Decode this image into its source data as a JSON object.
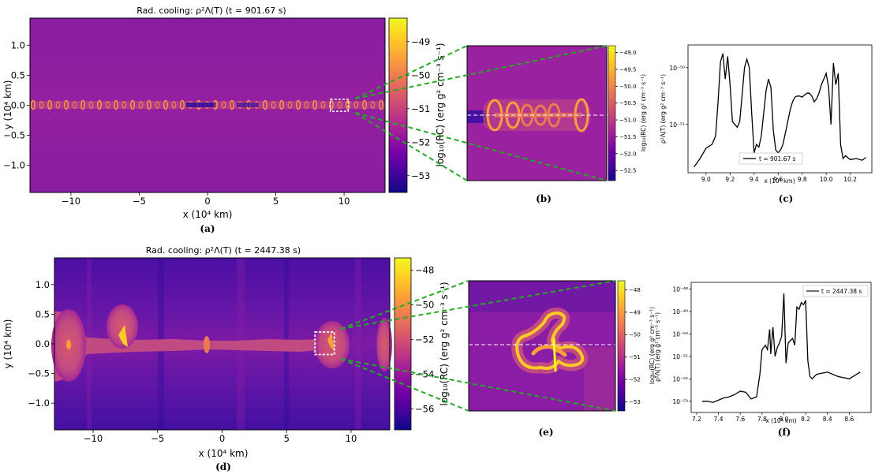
{
  "panel_labels": {
    "a": "(a)",
    "b": "(b)",
    "c": "(c)",
    "d": "(d)",
    "e": "(e)",
    "f": "(f)"
  },
  "colors": {
    "cmap": [
      "#0d0887",
      "#46039f",
      "#7201a8",
      "#9c179e",
      "#bd3786",
      "#d8576b",
      "#ed7953",
      "#fb9f3a",
      "#fdca26",
      "#f0f921"
    ],
    "bg_top": "#8f1aa0",
    "bg_bottom": "#5a13a6",
    "connector": "#22aa22",
    "cut_line": "#ffffff",
    "frame": "#000000"
  },
  "chart_data": [
    {
      "id": "a",
      "type": "heatmap",
      "title": "Rad. cooling: ρ²Λ(T) (t = 901.67 s)",
      "xlabel": "x (10⁴ km)",
      "ylabel": "y (10⁴ km)",
      "xlim": [
        -13,
        13
      ],
      "ylim": [
        -1.45,
        1.45
      ],
      "xticks": [
        -10,
        -5,
        0,
        5,
        10
      ],
      "xtick_labels": [
        "−10",
        "−5",
        "0",
        "5",
        "10"
      ],
      "yticks": [
        1.0,
        0.5,
        0.0,
        -0.5,
        -1.0
      ],
      "ytick_labels": [
        "1.0",
        "0.5",
        "0.0",
        "−0.5",
        "−1.0"
      ],
      "colorbar": {
        "label": "log₁₀(RC) (erg g² cm⁻³ s⁻¹)",
        "range": [
          -53.5,
          -48.3
        ],
        "ticks": [
          -49,
          -50,
          -51,
          -52,
          -53
        ],
        "tick_labels": [
          "−49",
          "−50",
          "−51",
          "−52",
          "−53"
        ]
      },
      "zoom_box": {
        "x": [
          9.0,
          10.3
        ],
        "y": [
          -0.1,
          0.1
        ]
      }
    },
    {
      "id": "b",
      "type": "heatmap",
      "inset_of": "a",
      "colorbar": {
        "label": "log₁₀(RC) (erg g² cm⁻³ s⁻¹)",
        "range": [
          -52.8,
          -48.8
        ],
        "ticks": [
          -49.0,
          -49.5,
          -50.0,
          -50.5,
          -51.0,
          -51.5,
          -52.0,
          -52.5
        ],
        "tick_labels": [
          "−49.0",
          "−49.5",
          "−50.0",
          "−50.5",
          "−51.0",
          "−51.5",
          "−52.0",
          "−52.5"
        ]
      }
    },
    {
      "id": "c",
      "type": "line",
      "xlabel": "x (10⁴ km)",
      "ylabel": "ρ²Λ(T) (erg g² cm⁻³ s⁻¹)",
      "xlim": [
        8.85,
        10.38
      ],
      "ylim_log10": [
        -51.85,
        -49.6
      ],
      "log_y": true,
      "xticks": [
        9.0,
        9.2,
        9.4,
        9.6,
        9.8,
        10.0,
        10.2
      ],
      "xtick_labels": [
        "9.0",
        "9.2",
        "9.4",
        "9.6",
        "9.8",
        "10.0",
        "10.2"
      ],
      "yticks_log10": [
        -50,
        -51
      ],
      "ytick_labels": [
        "10⁻⁵⁰",
        "10⁻⁵¹"
      ],
      "legend": "t = 901.67 s",
      "legend_loc": "lower center",
      "series": [
        {
          "x": [
            8.9,
            8.95,
            9.0,
            9.05,
            9.08,
            9.1,
            9.12,
            9.14,
            9.16,
            9.18,
            9.2,
            9.22,
            9.24,
            9.26,
            9.28,
            9.3,
            9.32,
            9.34,
            9.36,
            9.38,
            9.4,
            9.42,
            9.44,
            9.46,
            9.48,
            9.5,
            9.52,
            9.54,
            9.56,
            9.58,
            9.6,
            9.62,
            9.64,
            9.66,
            9.68,
            9.7,
            9.72,
            9.74,
            9.76,
            9.78,
            9.8,
            9.82,
            9.84,
            9.86,
            9.88,
            9.9,
            9.92,
            9.94,
            9.96,
            9.98,
            10.0,
            10.02,
            10.04,
            10.06,
            10.08,
            10.1,
            10.12,
            10.14,
            10.16,
            10.2,
            10.25,
            10.3,
            10.33
          ],
          "log10y": [
            -51.75,
            -51.6,
            -51.42,
            -51.35,
            -51.2,
            -50.6,
            -49.9,
            -49.75,
            -50.2,
            -49.8,
            -50.3,
            -50.95,
            -51.0,
            -51.05,
            -50.95,
            -50.5,
            -50.0,
            -49.85,
            -50.0,
            -50.8,
            -51.5,
            -51.35,
            -51.4,
            -51.2,
            -50.8,
            -50.4,
            -50.2,
            -50.35,
            -51.1,
            -51.45,
            -51.5,
            -51.45,
            -51.35,
            -51.15,
            -50.95,
            -50.75,
            -50.6,
            -50.52,
            -50.5,
            -50.5,
            -50.52,
            -50.48,
            -50.45,
            -50.45,
            -50.5,
            -50.6,
            -50.55,
            -50.45,
            -50.3,
            -50.2,
            -50.1,
            -50.35,
            -51.0,
            -49.92,
            -50.3,
            -50.1,
            -51.35,
            -51.6,
            -51.55,
            -51.62,
            -51.6,
            -51.63,
            -51.58
          ]
        }
      ]
    },
    {
      "id": "d",
      "type": "heatmap",
      "title": "Rad. cooling: ρ²Λ(T) (t = 2447.38 s)",
      "xlabel": "x (10⁴ km)",
      "ylabel": "y (10⁴ km)",
      "xlim": [
        -13,
        13
      ],
      "ylim": [
        -1.45,
        1.45
      ],
      "xticks": [
        -10,
        -5,
        0,
        5,
        10
      ],
      "xtick_labels": [
        "−10",
        "−5",
        "0",
        "5",
        "10"
      ],
      "yticks": [
        1.0,
        0.5,
        0.0,
        -0.5,
        -1.0
      ],
      "ytick_labels": [
        "1.0",
        "0.5",
        "0.0",
        "−0.5",
        "−1.0"
      ],
      "colorbar": {
        "label": "log₁₀(RC) (erg g² cm⁻³ s⁻¹)",
        "range": [
          -57.2,
          -47.3
        ],
        "ticks": [
          -48,
          -50,
          -52,
          -54,
          -56
        ],
        "tick_labels": [
          "−48",
          "−50",
          "−52",
          "−54",
          "−56"
        ]
      },
      "zoom_box": {
        "x": [
          7.2,
          8.7
        ],
        "y": [
          -0.18,
          0.2
        ]
      }
    },
    {
      "id": "e",
      "type": "heatmap",
      "inset_of": "d",
      "colorbar": {
        "label": "log₁₀(RC) (erg g² cm⁻³ s⁻¹)",
        "range": [
          -53.4,
          -47.6
        ],
        "ticks": [
          -48,
          -49,
          -50,
          -51,
          -52,
          -53
        ],
        "tick_labels": [
          "−48",
          "−49",
          "−50",
          "−51",
          "−52",
          "−53"
        ]
      }
    },
    {
      "id": "f",
      "type": "line",
      "xlabel": "x (10⁴ km)",
      "ylabel": "ρ²Λ(T) (erg g² cm⁻³ s⁻¹)",
      "xlim": [
        7.15,
        8.8
      ],
      "ylim_log10": [
        -53.5,
        -47.7
      ],
      "log_y": true,
      "xticks": [
        7.2,
        7.4,
        7.6,
        7.8,
        8.0,
        8.2,
        8.4,
        8.6
      ],
      "xtick_labels": [
        "7.2",
        "7.4",
        "7.6",
        "7.8",
        "8.0",
        "8.2",
        "8.4",
        "8.6"
      ],
      "yticks_log10": [
        -48,
        -49,
        -50,
        -51,
        -52,
        -53
      ],
      "ytick_labels": [
        "10⁻⁴⁸",
        "10⁻⁴⁹",
        "10⁻⁵⁰",
        "10⁻⁵¹",
        "10⁻⁵²",
        "10⁻⁵³"
      ],
      "legend": "t = 2447.38 s",
      "legend_loc": "upper right",
      "series": [
        {
          "x": [
            7.25,
            7.3,
            7.35,
            7.4,
            7.45,
            7.5,
            7.55,
            7.6,
            7.65,
            7.7,
            7.75,
            7.78,
            7.8,
            7.83,
            7.85,
            7.87,
            7.88,
            7.9,
            7.92,
            7.94,
            7.96,
            7.98,
            8.0,
            8.02,
            8.04,
            8.06,
            8.08,
            8.1,
            8.12,
            8.14,
            8.16,
            8.18,
            8.2,
            8.22,
            8.24,
            8.26,
            8.3,
            8.4,
            8.5,
            8.6,
            8.7
          ],
          "log10y": [
            -53.0,
            -53.0,
            -53.05,
            -52.95,
            -52.85,
            -52.8,
            -52.7,
            -52.55,
            -52.6,
            -52.9,
            -52.8,
            -51.8,
            -50.7,
            -50.5,
            -50.7,
            -49.8,
            -50.9,
            -49.7,
            -51.0,
            -50.6,
            -50.4,
            -50.1,
            -48.2,
            -51.3,
            -50.4,
            -50.3,
            -50.2,
            -50.5,
            -48.8,
            -48.9,
            -48.6,
            -48.7,
            -48.5,
            -51.2,
            -51.9,
            -52.0,
            -51.8,
            -51.7,
            -51.9,
            -52.0,
            -51.7
          ]
        }
      ]
    }
  ]
}
